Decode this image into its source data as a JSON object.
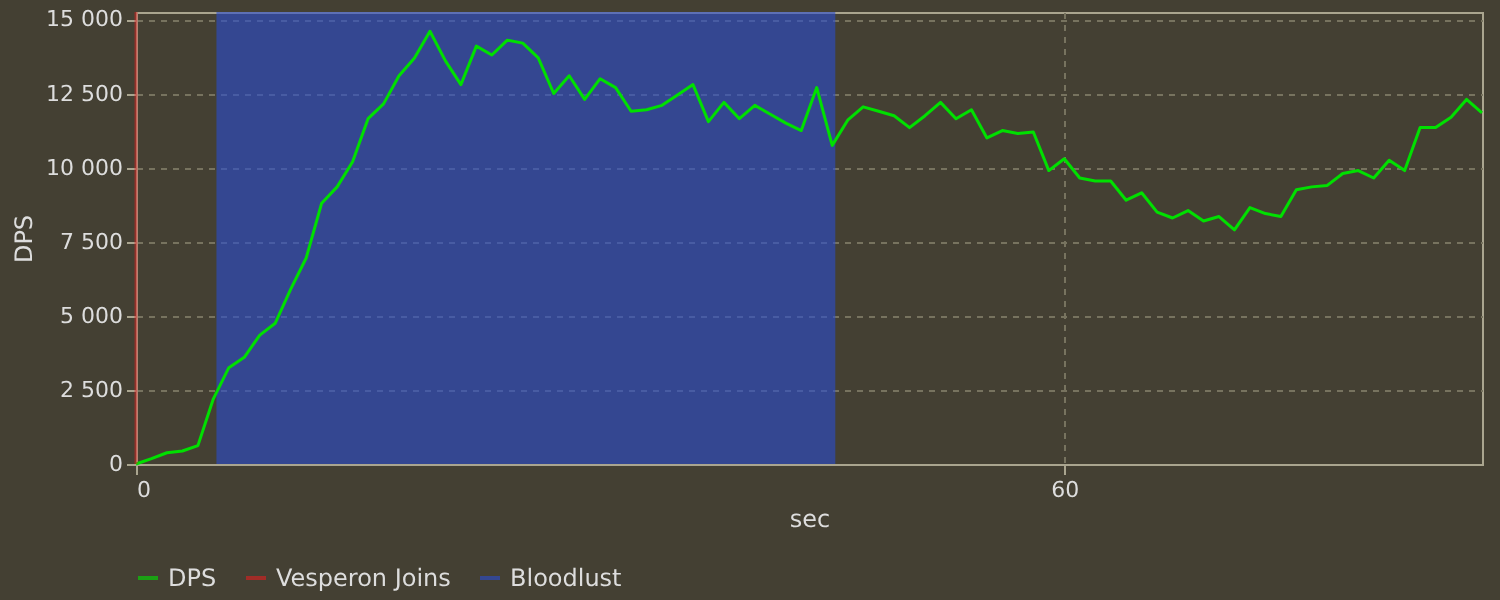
{
  "chart_data": {
    "type": "line",
    "xlabel": "sec",
    "ylabel": "DPS",
    "xlim": [
      0,
      87
    ],
    "ylim": [
      0,
      15250
    ],
    "xticks": [
      0,
      60
    ],
    "yticks": [
      0,
      {
        "value": 2500,
        "label": "2 500"
      },
      {
        "value": 5000,
        "label": "5 000"
      },
      {
        "value": 7500,
        "label": "7 500"
      },
      {
        "value": 10000,
        "label": "10 000"
      },
      {
        "value": 12500,
        "label": "12 500"
      },
      {
        "value": 15000,
        "label": "15 000"
      }
    ],
    "grid": true,
    "legend": "bottom",
    "marker": "none",
    "line_style": "solid",
    "series": [
      {
        "name": "DPS",
        "color": "#00e000",
        "x": [
          0,
          1,
          2,
          3,
          4,
          5,
          6,
          7,
          8,
          9,
          10,
          11,
          12,
          13,
          14,
          15,
          16,
          17,
          18,
          19,
          20,
          21,
          22,
          23,
          24,
          25,
          26,
          27,
          28,
          29,
          30,
          31,
          32,
          33,
          34,
          35,
          36,
          37,
          38,
          39,
          40,
          41,
          42,
          43,
          44,
          45,
          46,
          47,
          48,
          49,
          50,
          51,
          52,
          53,
          54,
          55,
          56,
          57,
          58,
          59,
          60,
          61,
          62,
          63,
          64,
          65,
          66,
          67,
          68,
          69,
          70,
          71,
          72,
          73,
          74,
          75,
          76,
          77,
          78,
          79,
          80,
          81,
          82,
          83,
          84,
          85,
          86,
          87
        ],
        "values": [
          0,
          180,
          380,
          440,
          620,
          2200,
          3250,
          3600,
          4350,
          4750,
          5900,
          6950,
          8800,
          9350,
          10200,
          11650,
          12150,
          13100,
          13700,
          14600,
          13600,
          12800,
          14100,
          13800,
          14300,
          14200,
          13700,
          12500,
          13100,
          12300,
          13000,
          12700,
          11900,
          11950,
          12100,
          12450,
          12800,
          11550,
          12200,
          11650,
          12100,
          11800,
          11500,
          11250,
          12700,
          10750,
          11600,
          12050,
          11900,
          11750,
          11350,
          11750,
          12200,
          11650,
          11950,
          11000,
          11250,
          11150,
          11200,
          9900,
          10300,
          9650,
          9550,
          9550,
          8900,
          9150,
          8500,
          8300,
          8550,
          8200,
          8350,
          7900,
          8650,
          8450,
          8350,
          9250,
          9350,
          9400,
          9800,
          9900,
          9650,
          10250,
          9900,
          11350,
          11350,
          11700,
          12300,
          11850
        ]
      }
    ],
    "ref_lines": [
      {
        "axis": "x",
        "value": 0,
        "label": "Vesperon Joins",
        "color": "#e02020"
      }
    ],
    "bands": [
      {
        "axis": "x",
        "from": 5.2,
        "to": 45.2,
        "label": "Bloodlust",
        "color": "#2a4cd0"
      }
    ]
  }
}
